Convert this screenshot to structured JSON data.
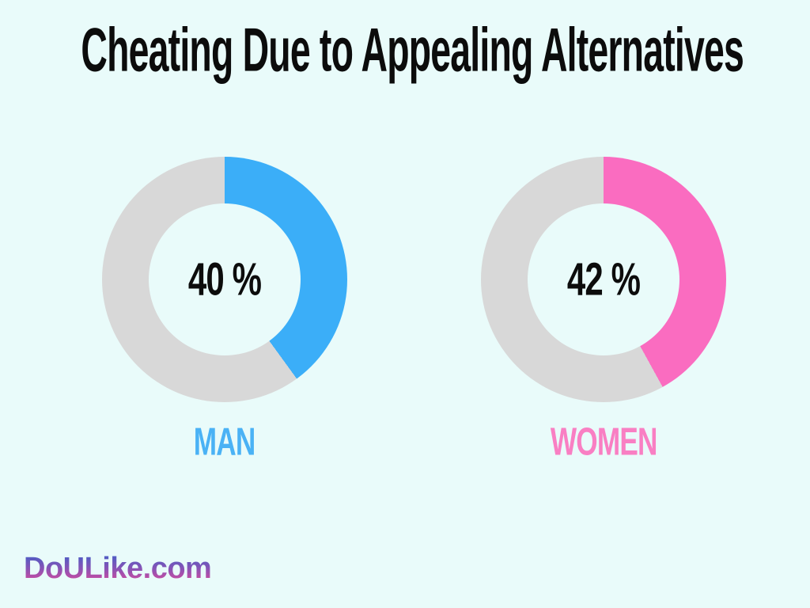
{
  "title": "Cheating Due to Appealing Alternatives",
  "footer": {
    "brand": "DoULike.com"
  },
  "colors": {
    "background": "#E9FBFA",
    "track": "#D8D8D8",
    "title_text": "#0C0C0C",
    "center_text": "#0C0C0C",
    "brand_gradient_top": "#3C5FC9",
    "brand_gradient_mid": "#8A53B5",
    "brand_gradient_bottom": "#DD4A9C"
  },
  "chart_data": {
    "type": "pie",
    "subtype": "donut-pair",
    "title": "Cheating Due to Appealing Alternatives",
    "track_color": "#D8D8D8",
    "start_angle_deg": 0,
    "direction": "clockwise",
    "legend_position": "below-each",
    "series": [
      {
        "name": "MAN",
        "value": 40,
        "unit": "%",
        "center_label": "40 %",
        "color": "#3BAEF8",
        "label_color": "#4AB2F5"
      },
      {
        "name": "WOMEN",
        "value": 42,
        "unit": "%",
        "center_label": "42 %",
        "color": "#FA6CC0",
        "label_color": "#F97FC3"
      }
    ]
  }
}
